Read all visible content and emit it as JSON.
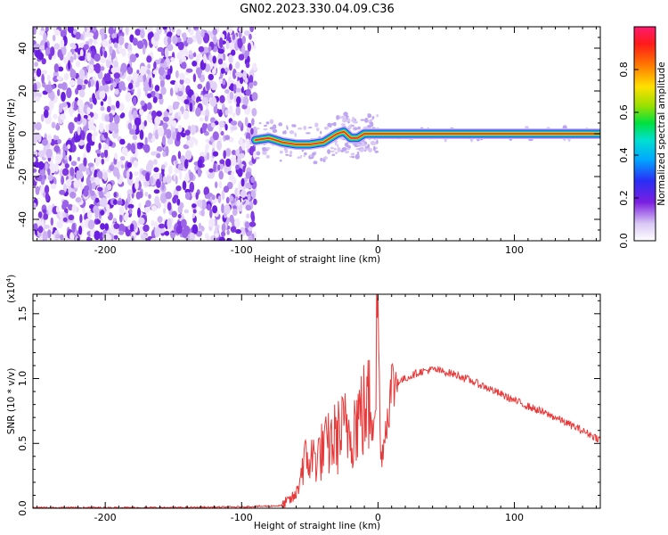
{
  "title": "GN02.2023.330.04.09.C36",
  "chart_data": [
    {
      "type": "heatmap",
      "title": "",
      "xlabel": "Height of straight line (km)",
      "ylabel": "Frequency (Hz)",
      "xlim": [
        -253,
        163
      ],
      "ylim": [
        -50,
        50
      ],
      "xticks": [
        -200,
        -100,
        0,
        100
      ],
      "yticks": [
        -40,
        -20,
        0,
        20,
        40
      ],
      "noise_region_x": [
        -253,
        -90
      ],
      "signal_track": [
        {
          "x": -90,
          "y": -3
        },
        {
          "x": -80,
          "y": -2
        },
        {
          "x": -70,
          "y": -4
        },
        {
          "x": -60,
          "y": -5
        },
        {
          "x": -50,
          "y": -5
        },
        {
          "x": -40,
          "y": -4
        },
        {
          "x": -30,
          "y": 0
        },
        {
          "x": -25,
          "y": 1
        },
        {
          "x": -20,
          "y": -2
        },
        {
          "x": -15,
          "y": -2
        },
        {
          "x": -10,
          "y": 0
        },
        {
          "x": -5,
          "y": 0
        },
        {
          "x": 0,
          "y": 0
        },
        {
          "x": 50,
          "y": 0
        },
        {
          "x": 100,
          "y": 0
        },
        {
          "x": 163,
          "y": 0
        }
      ],
      "colorbar": {
        "label": "Normalized spectral amplitude",
        "range": [
          0,
          1
        ],
        "ticks": [
          "0.0",
          "0.2",
          "0.4",
          "0.6",
          "0.8"
        ]
      }
    },
    {
      "type": "line",
      "title": "",
      "xlabel": "Height of straight line (km)",
      "ylabel": "SNR (10 * v/v)",
      "y_multiplier_label": "(x10",
      "y_multiplier_exp": "4",
      "y_multiplier_close": ")",
      "xlim": [
        -253,
        163
      ],
      "ylim": [
        0,
        1.65
      ],
      "xticks": [
        -200,
        -100,
        0,
        100
      ],
      "yticks": [
        "0.0",
        "0.5",
        "1.0",
        "1.5"
      ],
      "color": "#e8393a",
      "series": [
        {
          "x": [
            -253,
            -200,
            -150,
            -100,
            -70,
            -60,
            -55,
            -45,
            -40,
            -35,
            -30,
            -25,
            -20,
            -15,
            -10,
            -5,
            -2,
            0,
            2,
            10,
            20,
            30,
            40,
            50,
            60,
            80,
            100,
            130,
            163
          ],
          "y": [
            0.005,
            0.005,
            0.005,
            0.01,
            0.02,
            0.1,
            0.35,
            0.4,
            0.45,
            0.5,
            0.55,
            0.6,
            0.62,
            0.7,
            0.75,
            0.8,
            0.95,
            1.6,
            0.35,
            0.95,
            1.0,
            1.05,
            1.07,
            1.05,
            1.02,
            0.93,
            0.83,
            0.7,
            0.53
          ]
        }
      ]
    }
  ]
}
